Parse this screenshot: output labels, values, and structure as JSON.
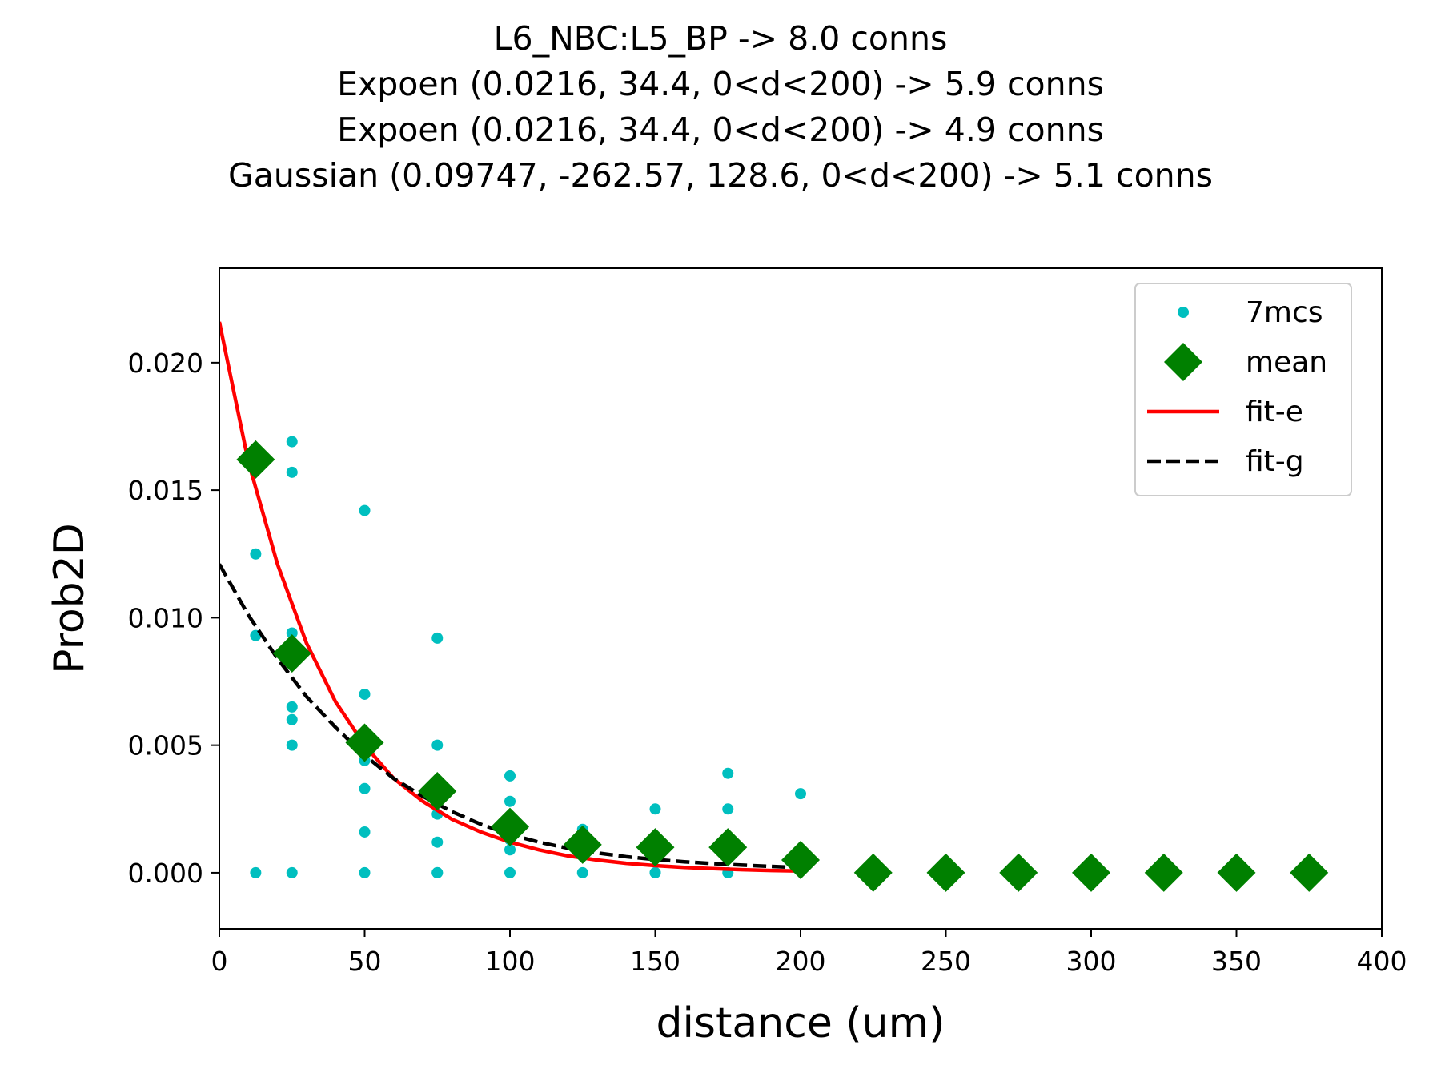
{
  "chart_data": {
    "type": "scatter",
    "title_lines": [
      "L6_NBC:L5_BP -> 8.0 conns",
      "Expoen (0.0216, 34.4, 0<d<200) -> 5.9 conns",
      "Expoen (0.0216, 34.4, 0<d<200) -> 4.9 conns",
      "Gaussian (0.09747, -262.57, 128.6, 0<d<200) -> 5.1 conns"
    ],
    "xlabel": "distance (um)",
    "ylabel": "Prob2D",
    "xlim": [
      0,
      400
    ],
    "ylim": [
      -0.0022,
      0.0237
    ],
    "xticks": [
      0,
      50,
      100,
      150,
      200,
      250,
      300,
      350,
      400
    ],
    "xtick_labels": [
      "0",
      "50",
      "100",
      "150",
      "200",
      "250",
      "300",
      "350",
      "400"
    ],
    "yticks": [
      0.0,
      0.005,
      0.01,
      0.015,
      0.02
    ],
    "ytick_labels": [
      "0.000",
      "0.005",
      "0.010",
      "0.015",
      "0.020"
    ],
    "grid": false,
    "legend_position": "upper right",
    "series": [
      {
        "name": "7mcs",
        "kind": "points",
        "color": "#00bfbf",
        "x": [
          12.5,
          12.5,
          12.5,
          25,
          25,
          25,
          25,
          25,
          25,
          25,
          50,
          50,
          50,
          50,
          50,
          50,
          75,
          75,
          75,
          75,
          75,
          75,
          100,
          100,
          100,
          100,
          100,
          125,
          125,
          150,
          150,
          150,
          175,
          175,
          175,
          200
        ],
        "y": [
          0.0125,
          0.0093,
          0.0,
          0.0169,
          0.0157,
          0.0094,
          0.0065,
          0.006,
          0.005,
          0.0,
          0.0142,
          0.007,
          0.0044,
          0.0033,
          0.0016,
          0.0,
          0.0092,
          0.005,
          0.0023,
          0.0012,
          0.0,
          0.0,
          0.0038,
          0.0028,
          0.0013,
          0.0009,
          0.0,
          0.0017,
          0.0,
          0.0025,
          0.0,
          0.0,
          0.0039,
          0.0025,
          0.0,
          0.0031
        ]
      },
      {
        "name": "mean",
        "kind": "diamonds",
        "color": "#008000",
        "x": [
          12.5,
          25,
          50,
          75,
          100,
          125,
          150,
          175,
          200,
          225,
          250,
          275,
          300,
          325,
          350,
          375
        ],
        "y": [
          0.0162,
          0.0086,
          0.0051,
          0.0032,
          0.0018,
          0.0011,
          0.001,
          0.001,
          0.0005,
          0.0,
          0.0,
          0.0,
          0.0,
          0.0,
          0.0,
          0.0
        ]
      },
      {
        "name": "fit-e",
        "kind": "line",
        "color": "#ff0000",
        "dashed": false,
        "x": [
          0,
          10,
          20,
          30,
          40,
          50,
          60,
          70,
          80,
          90,
          100,
          110,
          120,
          130,
          140,
          150,
          160,
          170,
          180,
          190,
          200
        ],
        "y": [
          0.0216,
          0.0161,
          0.0121,
          0.009,
          0.0067,
          0.005,
          0.0037,
          0.0028,
          0.0021,
          0.0016,
          0.0012,
          0.0009,
          0.00066,
          0.0005,
          0.00037,
          0.00028,
          0.00021,
          0.00016,
          0.00012,
          9e-05,
          7e-05
        ]
      },
      {
        "name": "fit-g",
        "kind": "line",
        "color": "#000000",
        "dashed": true,
        "x": [
          0,
          10,
          20,
          30,
          40,
          50,
          60,
          70,
          80,
          90,
          100,
          110,
          120,
          130,
          140,
          150,
          160,
          170,
          180,
          190,
          200
        ],
        "y": [
          0.0121,
          0.0101,
          0.0084,
          0.0069,
          0.0057,
          0.0046,
          0.0037,
          0.003,
          0.0024,
          0.0019,
          0.0015,
          0.0012,
          0.00096,
          0.00078,
          0.00063,
          0.00052,
          0.00043,
          0.00036,
          0.0003,
          0.00025,
          0.0002
        ]
      }
    ]
  }
}
